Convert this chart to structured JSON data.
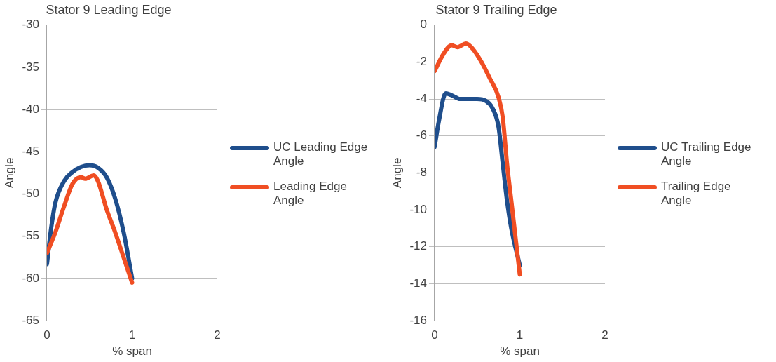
{
  "chart_data": [
    {
      "type": "line",
      "title": "Stator 9 Leading Edge",
      "xlabel": "% span",
      "ylabel": "Angle",
      "xlim": [
        0,
        2
      ],
      "xticks": [
        0,
        1,
        2
      ],
      "ylim": [
        -65,
        -30
      ],
      "yticks": [
        -65,
        -60,
        -55,
        -50,
        -45,
        -40,
        -35,
        -30
      ],
      "grid": "y",
      "legend": "right",
      "marker": "none",
      "line_style": "solid",
      "series": [
        {
          "name": "UC Leading Edge Angle",
          "color": "#1f4e8c",
          "x": [
            0,
            0.05,
            0.1,
            0.2,
            0.3,
            0.4,
            0.5,
            0.6,
            0.7,
            0.8,
            0.9,
            1.0
          ],
          "values": [
            -58.3,
            -54,
            -51,
            -48.5,
            -47.4,
            -46.8,
            -46.6,
            -46.9,
            -48,
            -50.5,
            -54.5,
            -60
          ]
        },
        {
          "name": "Leading Edge Angle",
          "color": "#f04e23",
          "x": [
            0,
            0.1,
            0.2,
            0.3,
            0.4,
            0.45,
            0.55,
            0.6,
            0.7,
            0.8,
            0.9,
            1.0
          ],
          "values": [
            -57,
            -54.5,
            -51.5,
            -48.8,
            -48,
            -48.2,
            -47.8,
            -48.5,
            -51.8,
            -54.5,
            -57.5,
            -60.5
          ]
        }
      ]
    },
    {
      "type": "line",
      "title": "Stator 9 Trailing Edge",
      "xlabel": "% span",
      "ylabel": "Angle",
      "xlim": [
        0,
        2
      ],
      "xticks": [
        0,
        1,
        2
      ],
      "ylim": [
        -16,
        0
      ],
      "yticks": [
        -16,
        -14,
        -12,
        -10,
        -8,
        -6,
        -4,
        -2,
        0
      ],
      "grid": "y",
      "legend": "right",
      "marker": "none",
      "line_style": "solid",
      "series": [
        {
          "name": "UC Trailing Edge Angle",
          "color": "#1f4e8c",
          "x": [
            0,
            0.05,
            0.13,
            0.2,
            0.3,
            0.5,
            0.6,
            0.68,
            0.75,
            0.8,
            0.85,
            0.9,
            1.0
          ],
          "values": [
            -6.6,
            -5.2,
            -3.7,
            -3.8,
            -4.0,
            -4.0,
            -4.1,
            -4.5,
            -5.5,
            -7.5,
            -9.5,
            -11,
            -13
          ]
        },
        {
          "name": "Trailing Edge Angle",
          "color": "#f04e23",
          "x": [
            0,
            0.1,
            0.2,
            0.27,
            0.37,
            0.45,
            0.55,
            0.65,
            0.75,
            0.8,
            0.85,
            0.9,
            0.95,
            1.0
          ],
          "values": [
            -2.5,
            -1.6,
            -1.1,
            -1.2,
            -1.0,
            -1.3,
            -2.0,
            -2.9,
            -3.9,
            -5,
            -7.5,
            -9.5,
            -11.5,
            -13.5
          ]
        }
      ]
    }
  ]
}
